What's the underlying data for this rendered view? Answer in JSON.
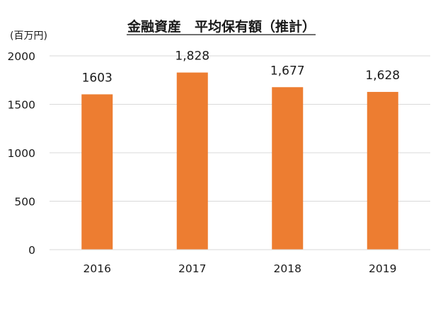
{
  "chart_data": {
    "type": "bar",
    "title": "金融資産　平均保有額（推計）",
    "unit_label": "(百万円)",
    "categories": [
      "2016",
      "2017",
      "2018",
      "2019"
    ],
    "values": [
      1603,
      1828,
      1677,
      1628
    ],
    "data_labels": [
      "1603",
      "1,828",
      "1,677",
      "1,628"
    ],
    "y_ticks": [
      0,
      500,
      1000,
      1500,
      2000
    ],
    "ylim": [
      0,
      2000
    ],
    "xlabel": "",
    "ylabel": "",
    "grid": true,
    "legend": "none",
    "bar_color": "#ED7D31",
    "grid_color": "#D9D9D9"
  }
}
